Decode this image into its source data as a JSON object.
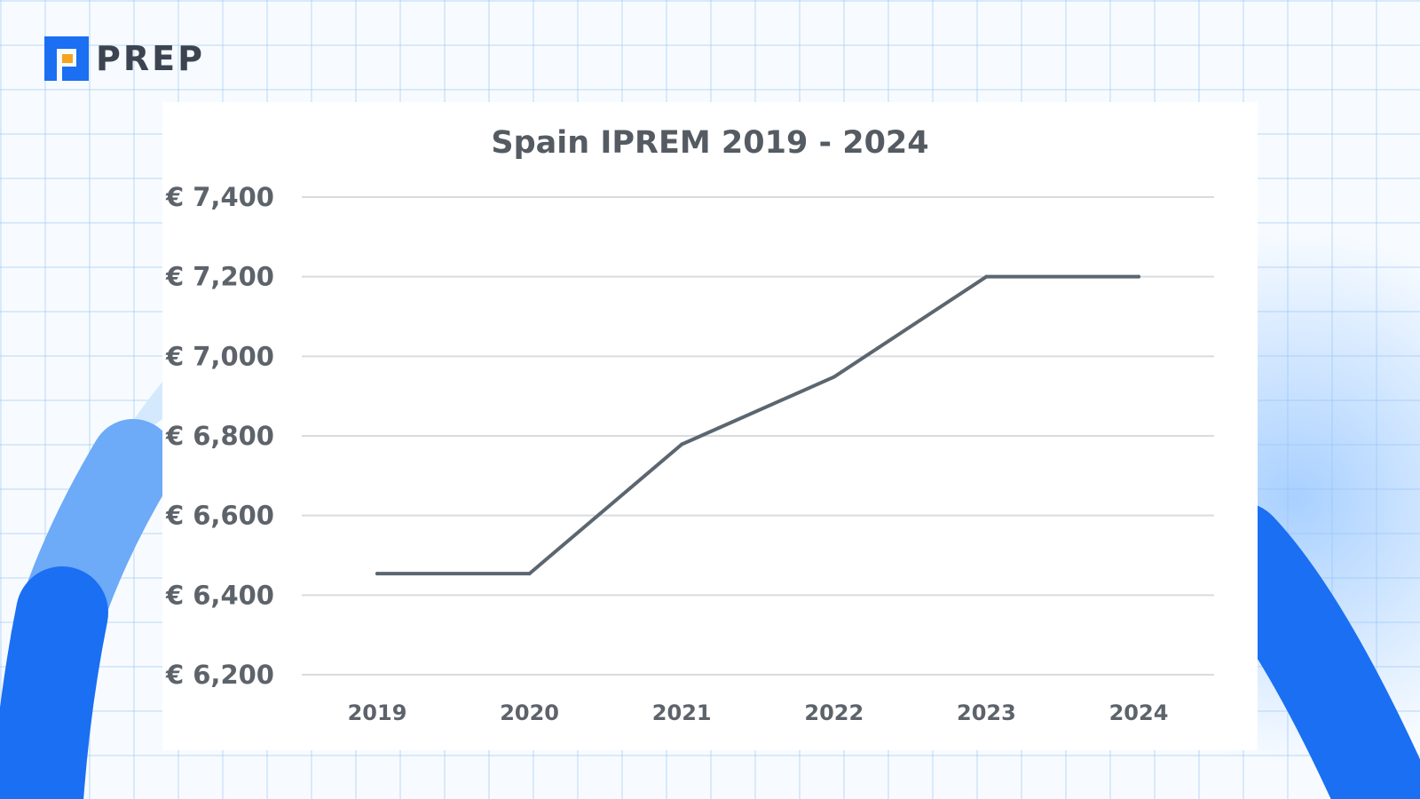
{
  "brand": {
    "name": "PREP",
    "icon": "prep-logo-icon",
    "colors": {
      "primary": "#1a6ff2",
      "accent": "#f7a31b"
    }
  },
  "chart_data": {
    "type": "line",
    "title": "Spain IPREM 2019 - 2024",
    "xlabel": "",
    "ylabel": "",
    "categories": [
      "2019",
      "2020",
      "2021",
      "2022",
      "2023",
      "2024"
    ],
    "series": [
      {
        "values": [
          6454.03,
          6454.03,
          6778.8,
          6948.24,
          7200.0,
          7200.0
        ]
      }
    ],
    "ylim": [
      6200,
      7400
    ],
    "yticks": [
      7400,
      7200,
      7000,
      6800,
      6600,
      6400,
      6200
    ],
    "ytick_labels": [
      "€ 7,400",
      "€ 7,200",
      "€ 7,000",
      "€ 6,800",
      "€ 6,600",
      "€ 6,400",
      "€ 6,200"
    ],
    "grid": true,
    "legend": "none",
    "colors": {
      "line": "#5b6670",
      "grid": "#d9dcdf"
    }
  }
}
